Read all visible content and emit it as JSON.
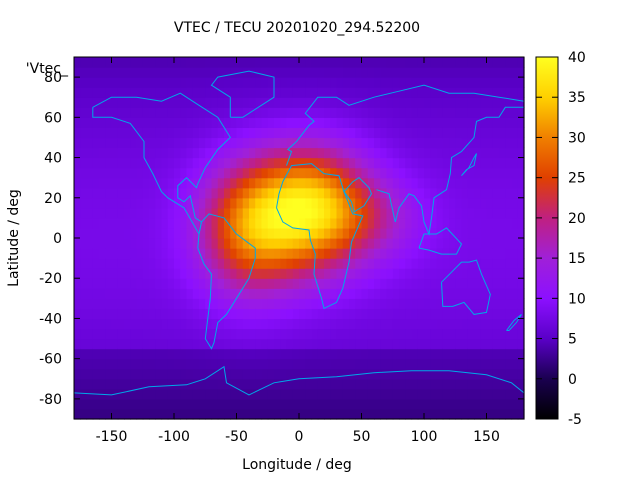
{
  "chart_data": {
    "type": "heatmap",
    "title": "VTEC / TECU 20201020_294.52200",
    "xlabel": "Longitude / deg",
    "ylabel": "Latitude / deg",
    "overlay_label": "'Vtec_",
    "xlim": [
      -180,
      180
    ],
    "ylim": [
      -90,
      90
    ],
    "x_ticks": [
      -150,
      -100,
      -50,
      0,
      50,
      100,
      150
    ],
    "y_ticks": [
      -80,
      -60,
      -40,
      -20,
      0,
      20,
      40,
      60,
      80
    ],
    "colorbar": {
      "range": [
        -5,
        40
      ],
      "ticks": [
        -5,
        0,
        5,
        10,
        15,
        20,
        25,
        30,
        35,
        40
      ],
      "palette": [
        "#000000",
        "#1a0050",
        "#5a00c8",
        "#8c10ff",
        "#a020d8",
        "#c02080",
        "#e04000",
        "#f08000",
        "#ffd000",
        "#ffff20"
      ]
    },
    "description_peaks": [
      {
        "lon": 10,
        "lat": 15,
        "value": 34
      },
      {
        "lon": -40,
        "lat": 5,
        "value": 30
      }
    ],
    "background_value": 7
  }
}
